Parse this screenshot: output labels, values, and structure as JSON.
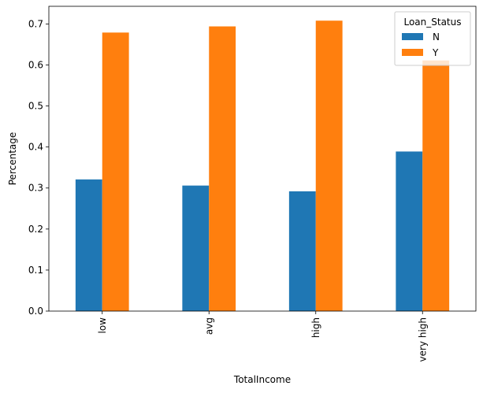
{
  "chart_data": {
    "type": "bar",
    "title": "",
    "xlabel": "TotalIncome",
    "ylabel": "Percentage",
    "categories": [
      "low",
      "avg",
      "high",
      "very high"
    ],
    "series": [
      {
        "name": "N",
        "color": "#1f77b4",
        "values": [
          0.321,
          0.306,
          0.292,
          0.389
        ]
      },
      {
        "name": "Y",
        "color": "#ff7f0e",
        "values": [
          0.679,
          0.694,
          0.708,
          0.611
        ]
      }
    ],
    "ylim": [
      0,
      0.743
    ],
    "yticks": [
      0.0,
      0.1,
      0.2,
      0.3,
      0.4,
      0.5,
      0.6,
      0.7
    ],
    "ytick_labels": [
      "0.0",
      "0.1",
      "0.2",
      "0.3",
      "0.4",
      "0.5",
      "0.6",
      "0.7"
    ],
    "grid": false,
    "legend": {
      "title": "Loan_Status",
      "placement": "top-right"
    }
  }
}
